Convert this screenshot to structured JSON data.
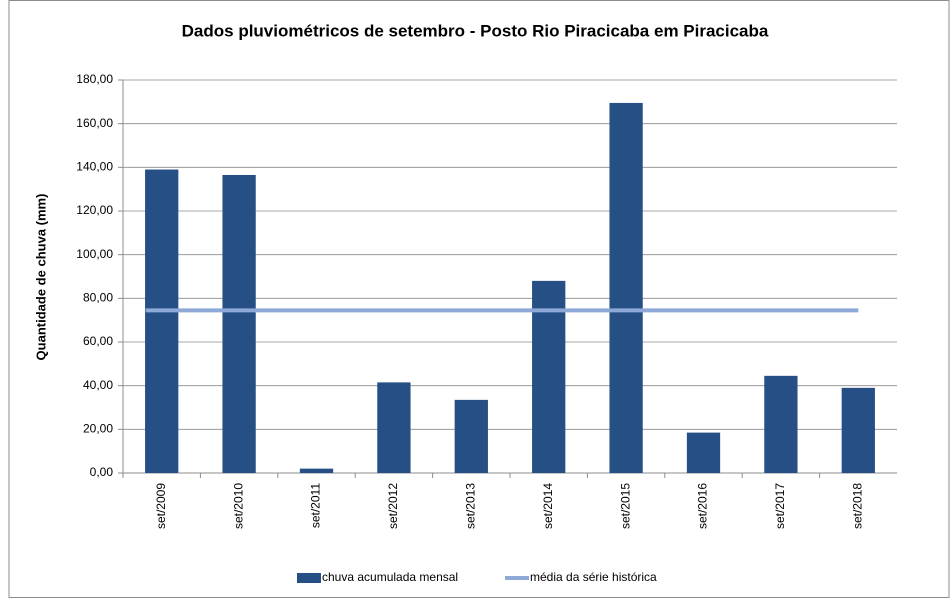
{
  "chart_data": {
    "type": "bar",
    "title": "Dados pluviométricos de setembro - Posto Rio Piracicaba em Piracicaba",
    "y_label": "Quantidade de chuva (mm)",
    "categories": [
      "set/2009",
      "set/2010",
      "set/2011",
      "set/2012",
      "set/2013",
      "set/2014",
      "set/2015",
      "set/2016",
      "set/2017",
      "set/2018"
    ],
    "series": [
      {
        "name": "chuva acumulada mensal",
        "type": "bar",
        "color": "#264f86",
        "values": [
          139,
          136.5,
          2,
          41.5,
          33.5,
          88,
          169.5,
          18.5,
          44.5,
          39
        ]
      },
      {
        "name": "média da série histórica",
        "type": "line",
        "color": "#8ea9d8",
        "values": [
          74.5,
          74.5,
          74.5,
          74.5,
          74.5,
          74.5,
          74.5,
          74.5,
          74.5,
          74.5
        ]
      }
    ],
    "ylim": [
      0,
      180
    ],
    "yticks": [
      {
        "value": 0,
        "label": "0,00"
      },
      {
        "value": 20,
        "label": "20,00"
      },
      {
        "value": 40,
        "label": "40,00"
      },
      {
        "value": 60,
        "label": "60,00"
      },
      {
        "value": 80,
        "label": "80,00"
      },
      {
        "value": 100,
        "label": "100,00"
      },
      {
        "value": 120,
        "label": "120,00"
      },
      {
        "value": 140,
        "label": "140,00"
      },
      {
        "value": 160,
        "label": "160,00"
      },
      {
        "value": 180,
        "label": "180,00"
      }
    ],
    "grid": true,
    "legend": "bottom"
  }
}
